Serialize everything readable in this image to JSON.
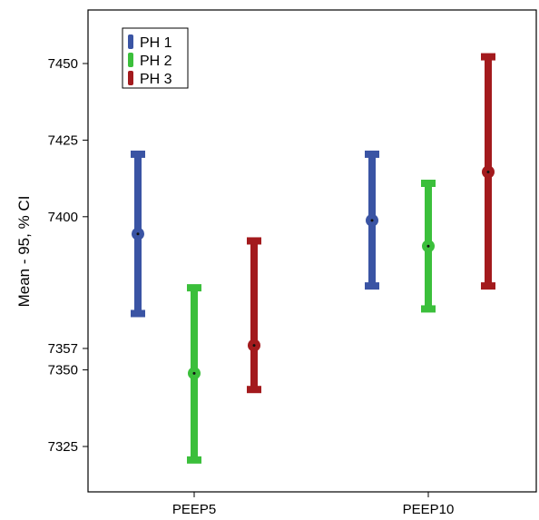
{
  "chart_data": {
    "type": "errorbar",
    "title": "",
    "xlabel": "",
    "ylabel": "Mean - 95, % CI",
    "categories": [
      "PEEP5",
      "PEEP10"
    ],
    "yticks": [
      7325,
      7350,
      7357,
      7400,
      7425,
      7450
    ],
    "ytick_labels": [
      "7325",
      "7350",
      "7357",
      "7400",
      "7425",
      "7450"
    ],
    "legend_position": "top-left",
    "grid": false,
    "series": [
      {
        "name": "PH 1",
        "color": "#3a54a4",
        "points": [
          {
            "category": "PEEP5",
            "mean": 7394.4,
            "lower": 7368.4,
            "upper": 7420.4
          },
          {
            "category": "PEEP10",
            "mean": 7398.8,
            "lower": 7377.4,
            "upper": 7420.4
          }
        ]
      },
      {
        "name": "PH 2",
        "color": "#3bbf3b",
        "points": [
          {
            "category": "PEEP5",
            "mean": 7348.9,
            "lower": 7320.6,
            "upper": 7376.8
          },
          {
            "category": "PEEP10",
            "mean": 7390.4,
            "lower": 7369.9,
            "upper": 7410.9
          }
        ]
      },
      {
        "name": "PH 3",
        "color": "#a31a1d",
        "points": [
          {
            "category": "PEEP5",
            "mean": 7358.0,
            "lower": 7343.6,
            "upper": 7392.1
          },
          {
            "category": "PEEP10",
            "mean": 7414.6,
            "lower": 7377.4,
            "upper": 7452.2
          }
        ]
      }
    ]
  }
}
